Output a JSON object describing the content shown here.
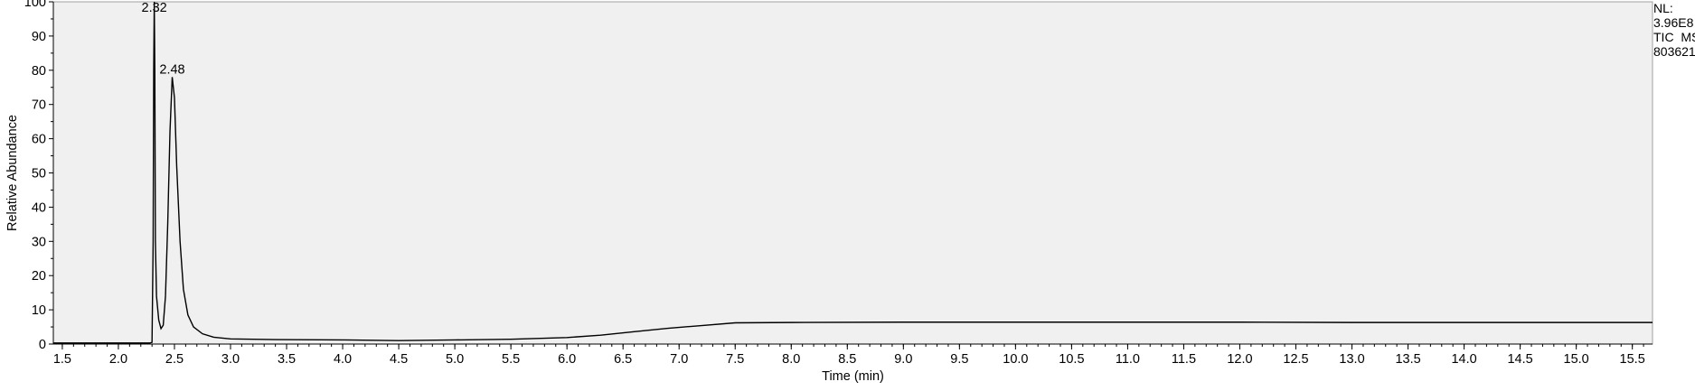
{
  "chart_data": {
    "type": "line",
    "xlabel": "Time (min)",
    "ylabel": "Relative Abundance",
    "xlim": [
      1.42,
      15.68
    ],
    "ylim": [
      0,
      100
    ],
    "x_ticks": [
      1.5,
      2.0,
      2.5,
      3.0,
      3.5,
      4.0,
      4.5,
      5.0,
      5.5,
      6.0,
      6.5,
      7.0,
      7.5,
      8.0,
      8.5,
      9.0,
      9.5,
      10.0,
      10.5,
      11.0,
      11.5,
      12.0,
      12.5,
      13.0,
      13.5,
      14.0,
      14.5,
      15.0,
      15.5
    ],
    "y_ticks": [
      0,
      10,
      20,
      30,
      40,
      50,
      60,
      70,
      80,
      90,
      100
    ],
    "background": "#f0f0f0",
    "line_color": "#000000",
    "peak_labels": [
      {
        "x": 2.32,
        "y": 100,
        "text": "2.32"
      },
      {
        "x": 2.48,
        "y": 78,
        "text": "2.48"
      }
    ],
    "series": [
      {
        "points": [
          [
            1.42,
            0.3
          ],
          [
            2.28,
            0.3
          ],
          [
            2.3,
            0.5
          ],
          [
            2.31,
            30
          ],
          [
            2.315,
            80
          ],
          [
            2.32,
            100
          ],
          [
            2.325,
            80
          ],
          [
            2.33,
            30
          ],
          [
            2.34,
            14
          ],
          [
            2.36,
            7
          ],
          [
            2.38,
            4.5
          ],
          [
            2.4,
            5.5
          ],
          [
            2.42,
            14
          ],
          [
            2.44,
            35
          ],
          [
            2.46,
            62
          ],
          [
            2.48,
            78
          ],
          [
            2.5,
            72
          ],
          [
            2.52,
            52
          ],
          [
            2.55,
            30
          ],
          [
            2.58,
            16
          ],
          [
            2.62,
            8.5
          ],
          [
            2.67,
            5
          ],
          [
            2.75,
            3
          ],
          [
            2.85,
            2
          ],
          [
            3.0,
            1.5
          ],
          [
            3.4,
            1.3
          ],
          [
            4.0,
            1.2
          ],
          [
            4.5,
            1.0
          ],
          [
            5.0,
            1.2
          ],
          [
            5.5,
            1.4
          ],
          [
            6.0,
            1.9
          ],
          [
            6.3,
            2.6
          ],
          [
            6.6,
            3.6
          ],
          [
            6.9,
            4.6
          ],
          [
            7.2,
            5.4
          ],
          [
            7.5,
            6.2
          ],
          [
            8.0,
            6.3
          ],
          [
            9.0,
            6.4
          ],
          [
            10.0,
            6.4
          ],
          [
            11.0,
            6.4
          ],
          [
            12.0,
            6.4
          ],
          [
            13.0,
            6.3
          ],
          [
            14.0,
            6.3
          ],
          [
            15.0,
            6.3
          ],
          [
            15.68,
            6.3
          ]
        ]
      }
    ]
  },
  "info": {
    "nl_label": "NL:",
    "nl_value": "3.96E8",
    "scan_type": "TIC  MS",
    "file_id": "803621"
  }
}
